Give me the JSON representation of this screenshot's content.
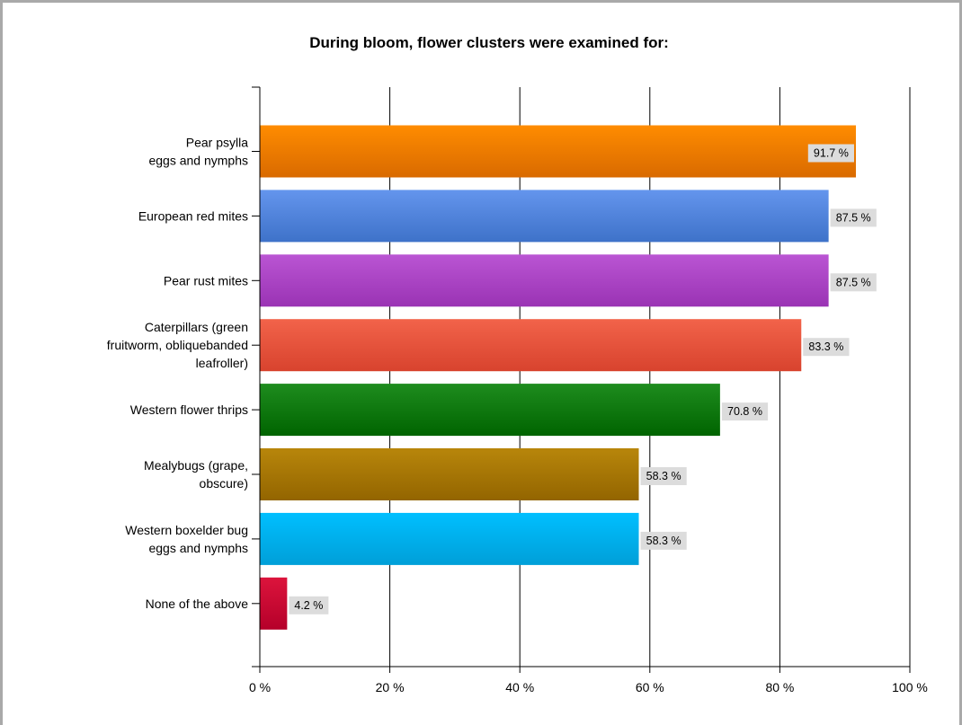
{
  "chart_data": {
    "type": "bar",
    "orientation": "horizontal",
    "title": "During bloom, flower clusters were examined for:",
    "xlabel": "",
    "ylabel": "",
    "xlim": [
      0,
      100
    ],
    "grid": true,
    "legend": "none",
    "x_ticks": [
      "0 %",
      "20 %",
      "40 %",
      "60 %",
      "80 %",
      "100 %"
    ],
    "categories": [
      [
        "Pear psylla",
        "eggs and nymphs"
      ],
      [
        "European red mites"
      ],
      [
        "Pear rust mites"
      ],
      [
        "Caterpillars (green",
        "fruitworm, obliquebanded",
        "leafroller)"
      ],
      [
        "Western flower thrips"
      ],
      [
        "Mealybugs (grape,",
        "obscure)"
      ],
      [
        "Western boxelder bug",
        "eggs and nymphs"
      ],
      [
        "None of the above"
      ]
    ],
    "values": [
      91.7,
      87.5,
      87.5,
      83.3,
      70.8,
      58.3,
      58.3,
      4.2
    ],
    "data_labels": [
      "91.7 %",
      "87.5 %",
      "87.5 %",
      "83.3 %",
      "70.8 %",
      "58.3 %",
      "58.3 %",
      "4.2 %"
    ],
    "colors": [
      [
        "#ff8c00",
        "#d96a00"
      ],
      [
        "#6495ed",
        "#3e72c9"
      ],
      [
        "#ba55d3",
        "#9a33b4"
      ],
      [
        "#f2634a",
        "#d8432e"
      ],
      [
        "#1e8c1e",
        "#006400"
      ],
      [
        "#b8860b",
        "#936500"
      ],
      [
        "#00bfff",
        "#009fd8"
      ],
      [
        "#dc143c",
        "#b5002a"
      ]
    ],
    "data_label_bg": "#dcdcdc"
  }
}
